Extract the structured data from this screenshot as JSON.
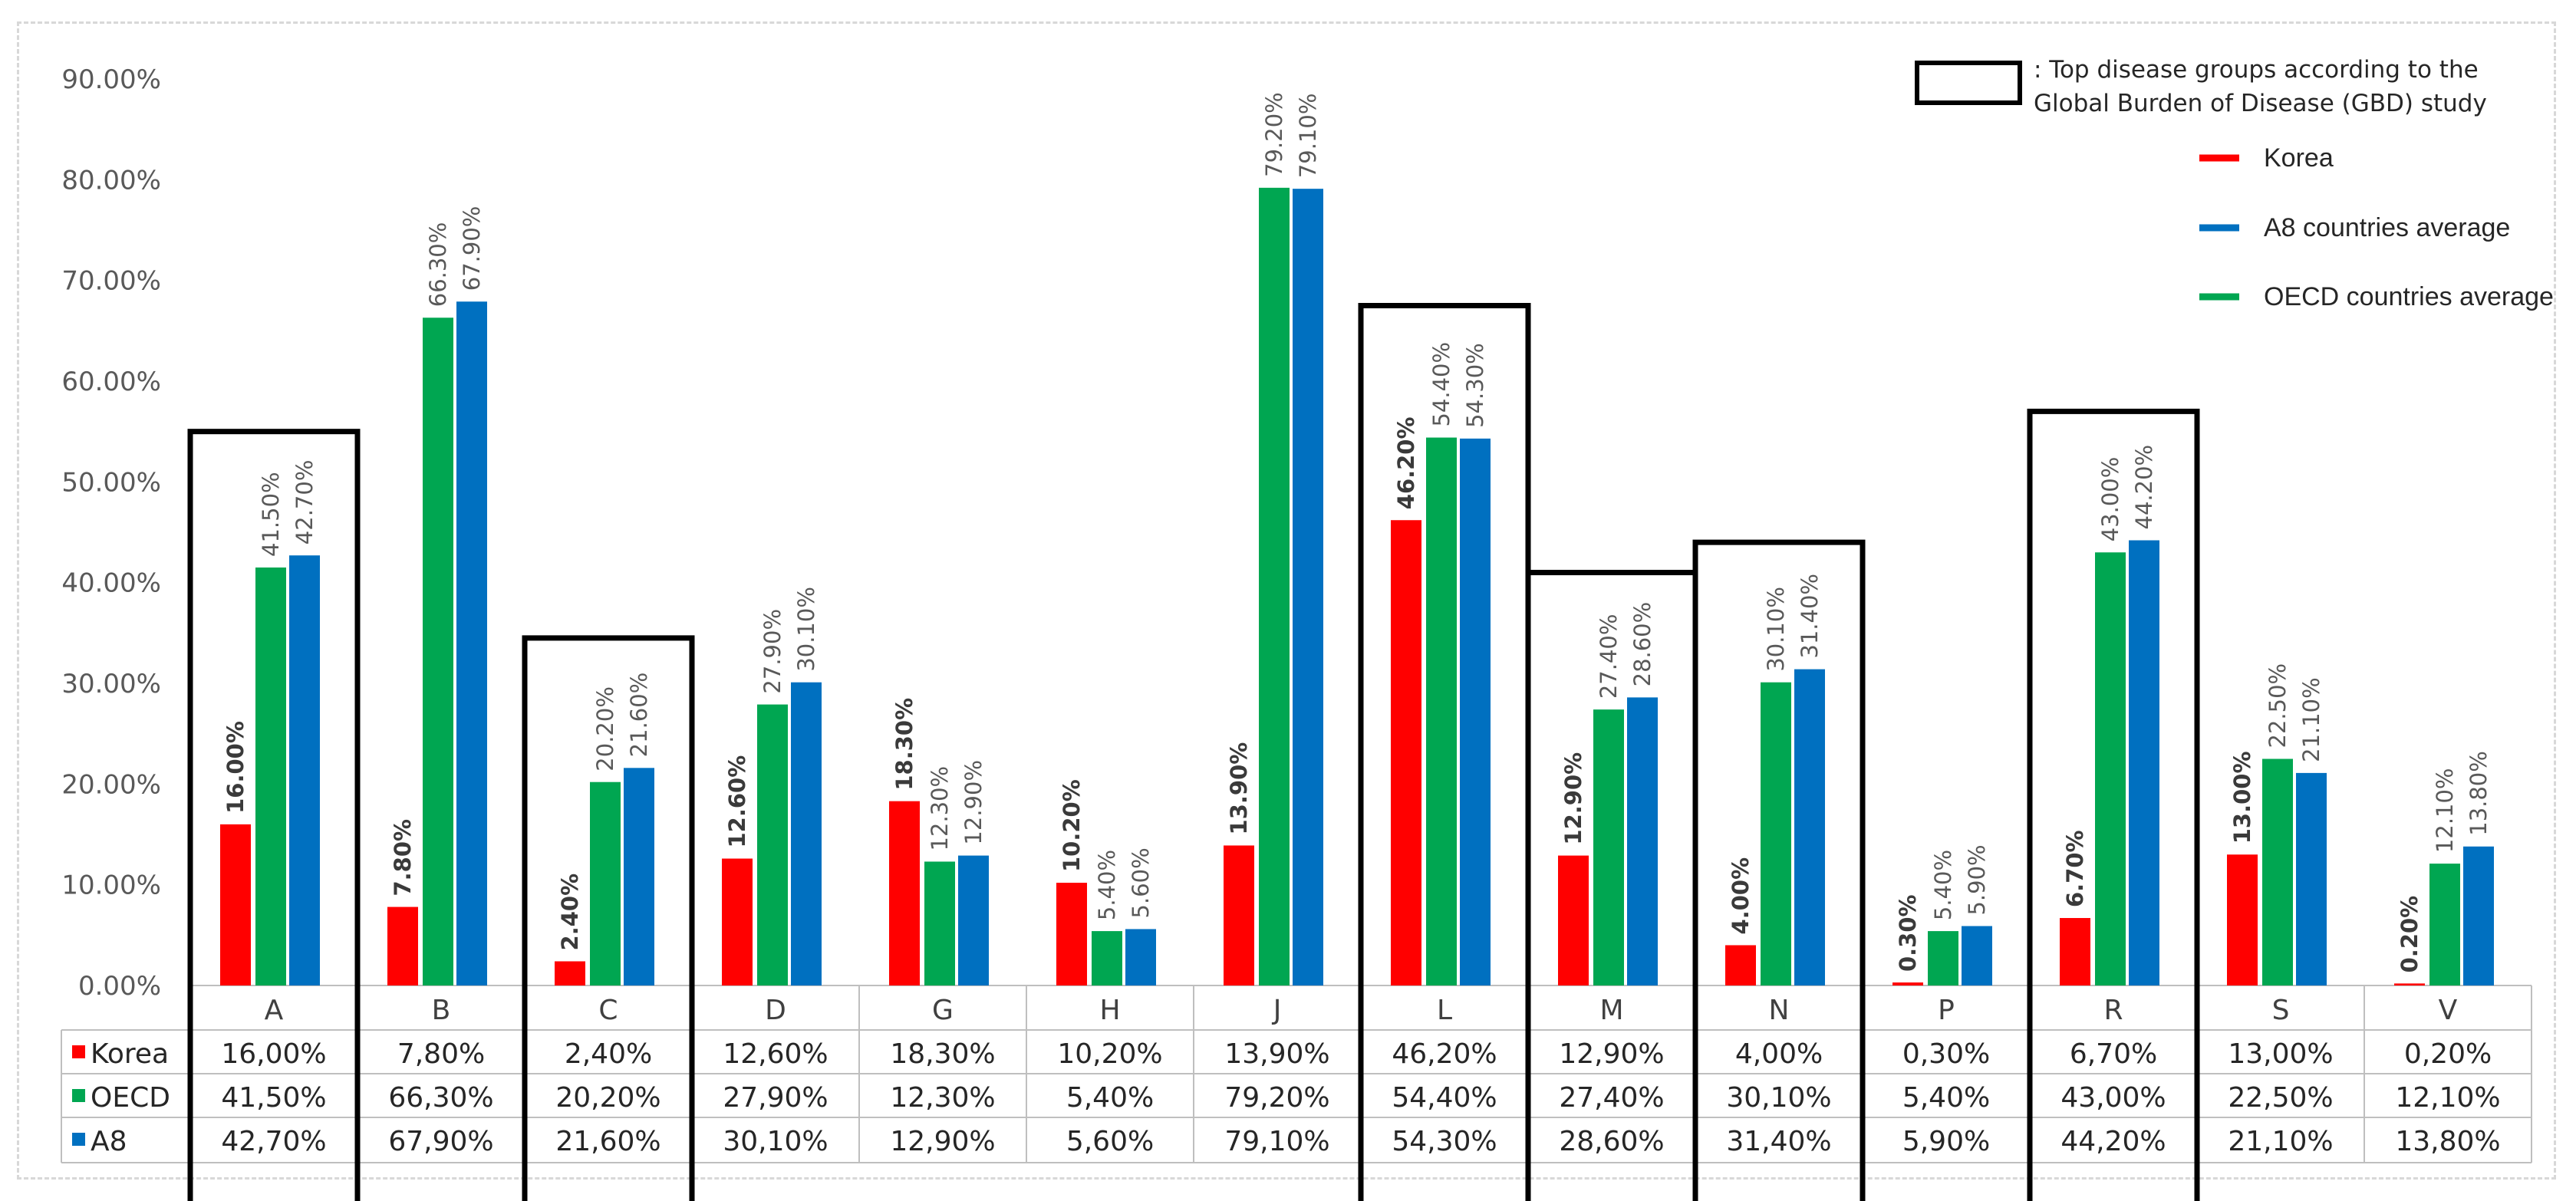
{
  "chart_data": {
    "type": "bar",
    "title": "",
    "xlabel": "",
    "ylabel": "",
    "ylim": [
      0,
      90
    ],
    "y_ticks": [
      "0.00%",
      "10.00%",
      "20.00%",
      "30.00%",
      "40.00%",
      "50.00%",
      "60.00%",
      "70.00%",
      "80.00%",
      "90.00%"
    ],
    "categories": [
      "A",
      "B",
      "C",
      "D",
      "G",
      "H",
      "J",
      "L",
      "M",
      "N",
      "P",
      "R",
      "S",
      "V"
    ],
    "series": [
      {
        "name": "Korea",
        "table_label": "Korea",
        "color": "#ff0000",
        "values": [
          16.0,
          7.8,
          2.4,
          12.6,
          18.3,
          10.2,
          13.9,
          46.2,
          12.9,
          4.0,
          0.3,
          6.7,
          13.0,
          0.2
        ],
        "bar_labels": [
          "16.00%",
          "7.80%",
          "2.40%",
          "12.60%",
          "18.30%",
          "10.20%",
          "13.90%",
          "46.20%",
          "12.90%",
          "4.00%",
          "0.30%",
          "6.70%",
          "13.00%",
          "0.20%"
        ],
        "table_values": [
          "16,00%",
          "7,80%",
          "2,40%",
          "12,60%",
          "18,30%",
          "10,20%",
          "13,90%",
          "46,20%",
          "12,90%",
          "4,00%",
          "0,30%",
          "6,70%",
          "13,00%",
          "0,20%"
        ]
      },
      {
        "name": "OECD countries average",
        "table_label": "OECD",
        "color": "#00a651",
        "values": [
          41.5,
          66.3,
          20.2,
          27.9,
          12.3,
          5.4,
          79.2,
          54.4,
          27.4,
          30.1,
          5.4,
          43.0,
          22.5,
          12.1
        ],
        "bar_labels": [
          "41.50%",
          "66.30%",
          "20.20%",
          "27.90%",
          "12.30%",
          "5.40%",
          "79.20%",
          "54.40%",
          "27.40%",
          "30.10%",
          "5.40%",
          "43.00%",
          "22.50%",
          "12.10%"
        ],
        "table_values": [
          "41,50%",
          "66,30%",
          "20,20%",
          "27,90%",
          "12,30%",
          "5,40%",
          "79,20%",
          "54,40%",
          "27,40%",
          "30,10%",
          "5,40%",
          "43,00%",
          "22,50%",
          "12,10%"
        ]
      },
      {
        "name": "A8 countries average",
        "table_label": "A8",
        "color": "#0070c0",
        "values": [
          42.7,
          67.9,
          21.6,
          30.1,
          12.9,
          5.6,
          79.1,
          54.3,
          28.6,
          31.4,
          5.9,
          44.2,
          21.1,
          13.8
        ],
        "bar_labels": [
          "42.70%",
          "67.90%",
          "21.60%",
          "30.10%",
          "12.90%",
          "5.60%",
          "79.10%",
          "54.30%",
          "28.60%",
          "31.40%",
          "5.90%",
          "44.20%",
          "21.10%",
          "13.80%"
        ],
        "table_values": [
          "42,70%",
          "67,90%",
          "21,60%",
          "30,10%",
          "12,90%",
          "5,60%",
          "79,10%",
          "54,30%",
          "28,60%",
          "31,40%",
          "5,90%",
          "44,20%",
          "21,10%",
          "13,80%"
        ]
      }
    ],
    "highlighted_categories": [
      "A",
      "C",
      "L",
      "M",
      "N",
      "R"
    ],
    "highlight_note": ": Top disease groups according to the Global Burden of Disease (GBD) study",
    "legend": [
      "Korea",
      "A8 countries average",
      "OECD countries average"
    ],
    "legend_position": "top-right",
    "grid": false
  }
}
